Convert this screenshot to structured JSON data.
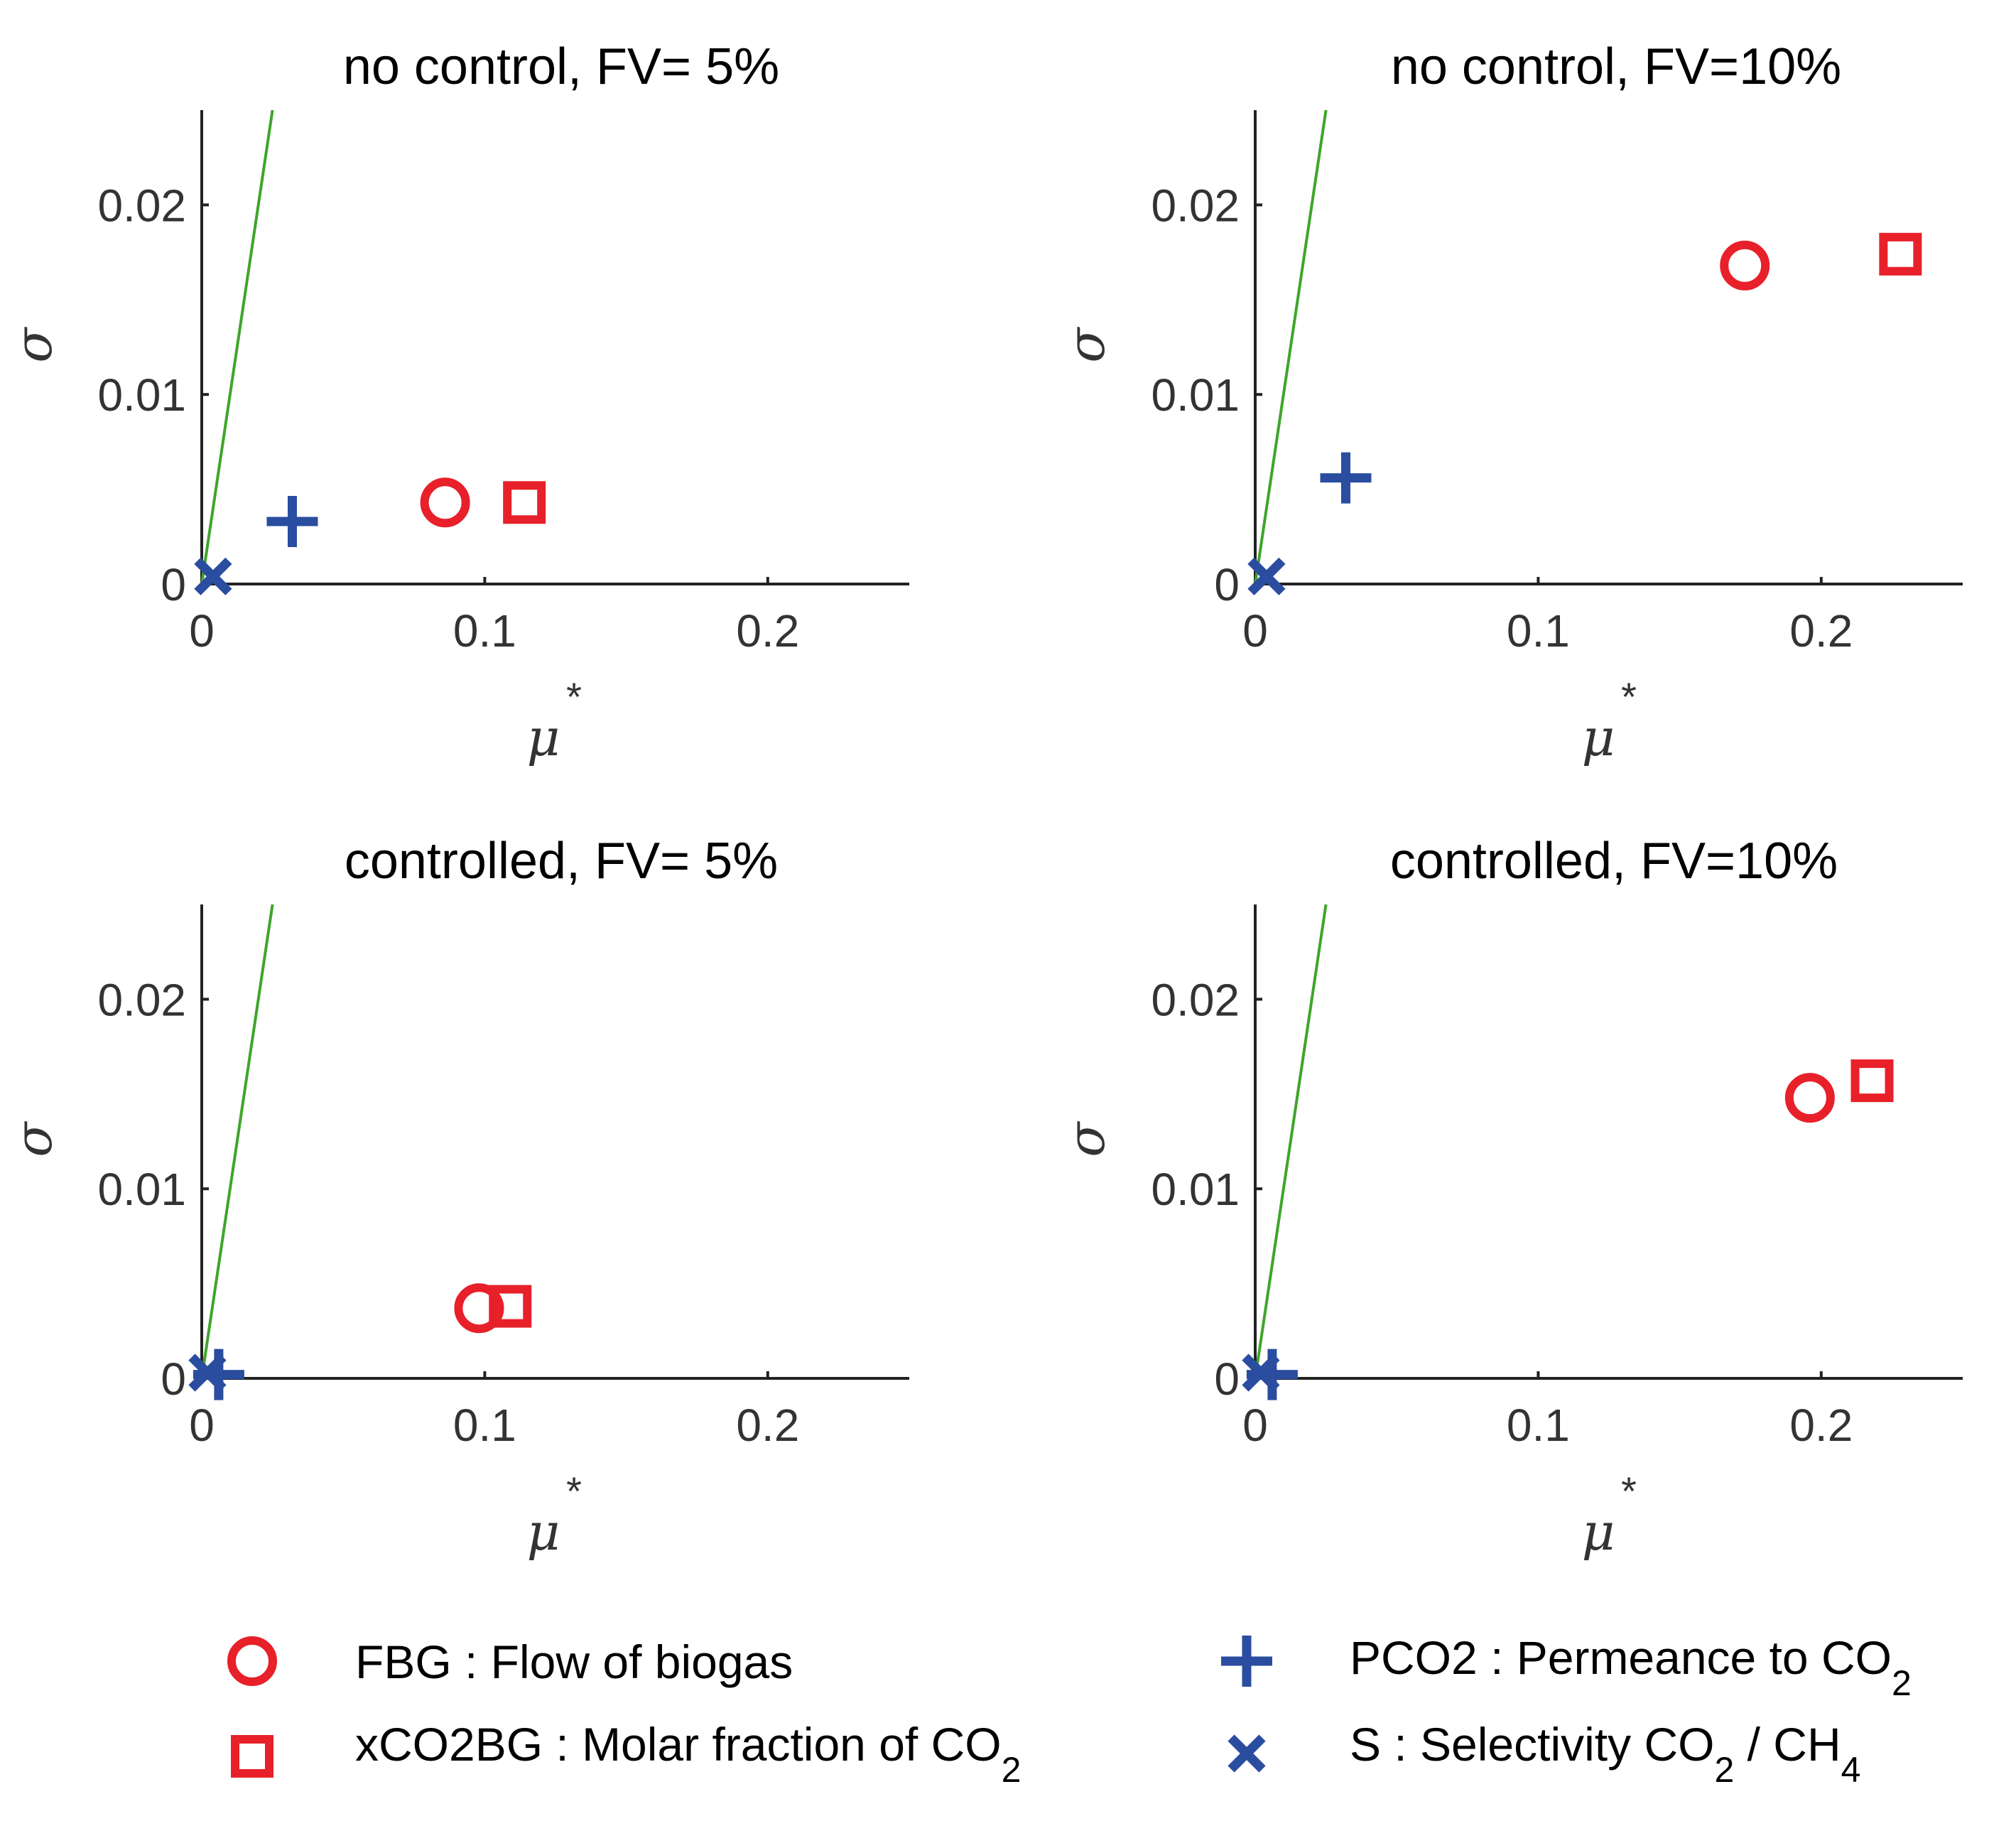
{
  "colors": {
    "red": "#E8202A",
    "blue": "#2A4DA0",
    "green": "#3FA52B",
    "axis": "#222222"
  },
  "chart_data": [
    {
      "type": "scatter",
      "title": "no control, FV= 5%",
      "xlabel": "μ",
      "xlabel_sup": "*",
      "ylabel": "σ",
      "xlim": [
        0,
        0.25
      ],
      "ylim": [
        0,
        0.025
      ],
      "xticks": [
        {
          "v": 0,
          "label": "0"
        },
        {
          "v": 0.1,
          "label": "0.1"
        },
        {
          "v": 0.2,
          "label": "0.2"
        }
      ],
      "yticks": [
        {
          "v": 0,
          "label": "0"
        },
        {
          "v": 0.01,
          "label": "0.01"
        },
        {
          "v": 0.02,
          "label": "0.02"
        }
      ],
      "reference_line": [
        [
          0,
          0
        ],
        [
          0.025,
          0.025
        ]
      ],
      "points": [
        {
          "name": "FBG",
          "x": 0.086,
          "y": 0.0043,
          "marker": "circle"
        },
        {
          "name": "xCO2BG",
          "x": 0.114,
          "y": 0.0043,
          "marker": "square"
        },
        {
          "name": "PCO2",
          "x": 0.032,
          "y": 0.0033,
          "marker": "plus"
        },
        {
          "name": "S",
          "x": 0.004,
          "y": 0.0004,
          "marker": "x"
        }
      ]
    },
    {
      "type": "scatter",
      "title": "no control, FV=10%",
      "xlabel": "μ",
      "xlabel_sup": "*",
      "ylabel": "σ",
      "xlim": [
        0,
        0.25
      ],
      "ylim": [
        0,
        0.025
      ],
      "xticks": [
        {
          "v": 0,
          "label": "0"
        },
        {
          "v": 0.1,
          "label": "0.1"
        },
        {
          "v": 0.2,
          "label": "0.2"
        }
      ],
      "yticks": [
        {
          "v": 0,
          "label": "0"
        },
        {
          "v": 0.01,
          "label": "0.01"
        },
        {
          "v": 0.02,
          "label": "0.02"
        }
      ],
      "reference_line": [
        [
          0,
          0
        ],
        [
          0.025,
          0.025
        ]
      ],
      "points": [
        {
          "name": "FBG",
          "x": 0.173,
          "y": 0.0168,
          "marker": "circle"
        },
        {
          "name": "xCO2BG",
          "x": 0.228,
          "y": 0.0174,
          "marker": "square"
        },
        {
          "name": "PCO2",
          "x": 0.032,
          "y": 0.0056,
          "marker": "plus"
        },
        {
          "name": "S",
          "x": 0.004,
          "y": 0.0004,
          "marker": "x"
        }
      ]
    },
    {
      "type": "scatter",
      "title": "controlled, FV= 5%",
      "xlabel": "μ",
      "xlabel_sup": "*",
      "ylabel": "σ",
      "xlim": [
        0,
        0.25
      ],
      "ylim": [
        0,
        0.025
      ],
      "xticks": [
        {
          "v": 0,
          "label": "0"
        },
        {
          "v": 0.1,
          "label": "0.1"
        },
        {
          "v": 0.2,
          "label": "0.2"
        }
      ],
      "yticks": [
        {
          "v": 0,
          "label": "0"
        },
        {
          "v": 0.01,
          "label": "0.01"
        },
        {
          "v": 0.02,
          "label": "0.02"
        }
      ],
      "reference_line": [
        [
          0,
          0
        ],
        [
          0.025,
          0.025
        ]
      ],
      "points": [
        {
          "name": "FBG",
          "x": 0.098,
          "y": 0.0037,
          "marker": "circle"
        },
        {
          "name": "xCO2BG",
          "x": 0.109,
          "y": 0.0038,
          "marker": "square"
        },
        {
          "name": "PCO2",
          "x": 0.006,
          "y": 0.0002,
          "marker": "plus"
        },
        {
          "name": "S",
          "x": 0.002,
          "y": 0.0003,
          "marker": "x"
        }
      ]
    },
    {
      "type": "scatter",
      "title": "controlled, FV=10%",
      "xlabel": "μ",
      "xlabel_sup": "*",
      "ylabel": "σ",
      "xlim": [
        0,
        0.25
      ],
      "ylim": [
        0,
        0.025
      ],
      "xticks": [
        {
          "v": 0,
          "label": "0"
        },
        {
          "v": 0.1,
          "label": "0.1"
        },
        {
          "v": 0.2,
          "label": "0.2"
        }
      ],
      "yticks": [
        {
          "v": 0,
          "label": "0"
        },
        {
          "v": 0.01,
          "label": "0.01"
        },
        {
          "v": 0.02,
          "label": "0.02"
        }
      ],
      "reference_line": [
        [
          0,
          0
        ],
        [
          0.025,
          0.025
        ]
      ],
      "points": [
        {
          "name": "FBG",
          "x": 0.196,
          "y": 0.0148,
          "marker": "circle"
        },
        {
          "name": "xCO2BG",
          "x": 0.218,
          "y": 0.0157,
          "marker": "square"
        },
        {
          "name": "PCO2",
          "x": 0.006,
          "y": 0.0002,
          "marker": "plus"
        },
        {
          "name": "S",
          "x": 0.002,
          "y": 0.0003,
          "marker": "x"
        }
      ]
    }
  ],
  "legend": [
    {
      "marker": "circle",
      "color": "red",
      "text": "FBG : Flow of biogas",
      "parts": [
        {
          "t": "FBG : Flow of biogas"
        }
      ]
    },
    {
      "marker": "square",
      "color": "red",
      "text": "xCO2BG : Molar fraction of CO2",
      "parts": [
        {
          "t": "xCO2BG : Molar fraction of CO"
        },
        {
          "t": "2",
          "sub": true
        }
      ]
    },
    {
      "marker": "plus",
      "color": "blue",
      "text": "PCO2 : Permeance to CO2",
      "parts": [
        {
          "t": "PCO2 : Permeance to CO"
        },
        {
          "t": "2",
          "sub": true
        }
      ]
    },
    {
      "marker": "x",
      "color": "blue",
      "text": "S : Selectivity CO2 / CH4",
      "parts": [
        {
          "t": "S : Selectivity CO"
        },
        {
          "t": "2",
          "sub": true
        },
        {
          "t": " / CH"
        },
        {
          "t": "4",
          "sub": true
        }
      ]
    }
  ]
}
